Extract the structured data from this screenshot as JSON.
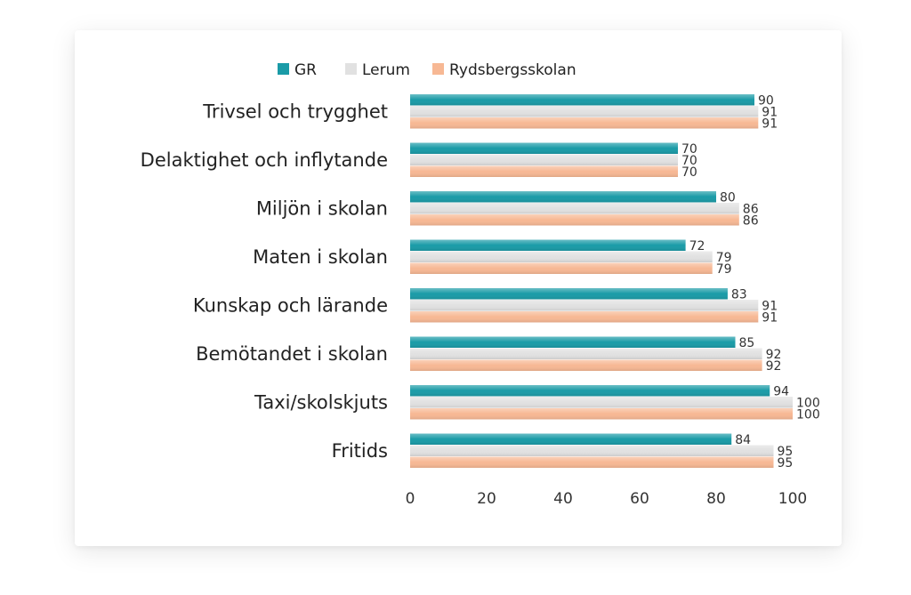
{
  "chart_data": {
    "type": "bar",
    "orientation": "horizontal",
    "categories": [
      "Trivsel och trygghet",
      "Delaktighet och inflytande",
      "Miljön i skolan",
      "Maten i skolan",
      "Kunskap och lärande",
      "Bemötandet i skolan",
      "Taxi/skolskjuts",
      "Fritids"
    ],
    "series": [
      {
        "name": "GR",
        "color": "#1a9ba7",
        "values": [
          90,
          70,
          80,
          72,
          83,
          85,
          94,
          84
        ]
      },
      {
        "name": "Lerum",
        "color": "#e1e1e1",
        "values": [
          91,
          70,
          86,
          79,
          91,
          92,
          100,
          95
        ]
      },
      {
        "name": "Rydsbergsskolan",
        "color": "#f7b894",
        "values": [
          91,
          70,
          86,
          79,
          91,
          92,
          100,
          95
        ]
      }
    ],
    "xlim": [
      0,
      100
    ],
    "xticks": [
      0,
      20,
      40,
      60,
      80,
      100
    ],
    "legend_position": "top",
    "grid": false
  }
}
